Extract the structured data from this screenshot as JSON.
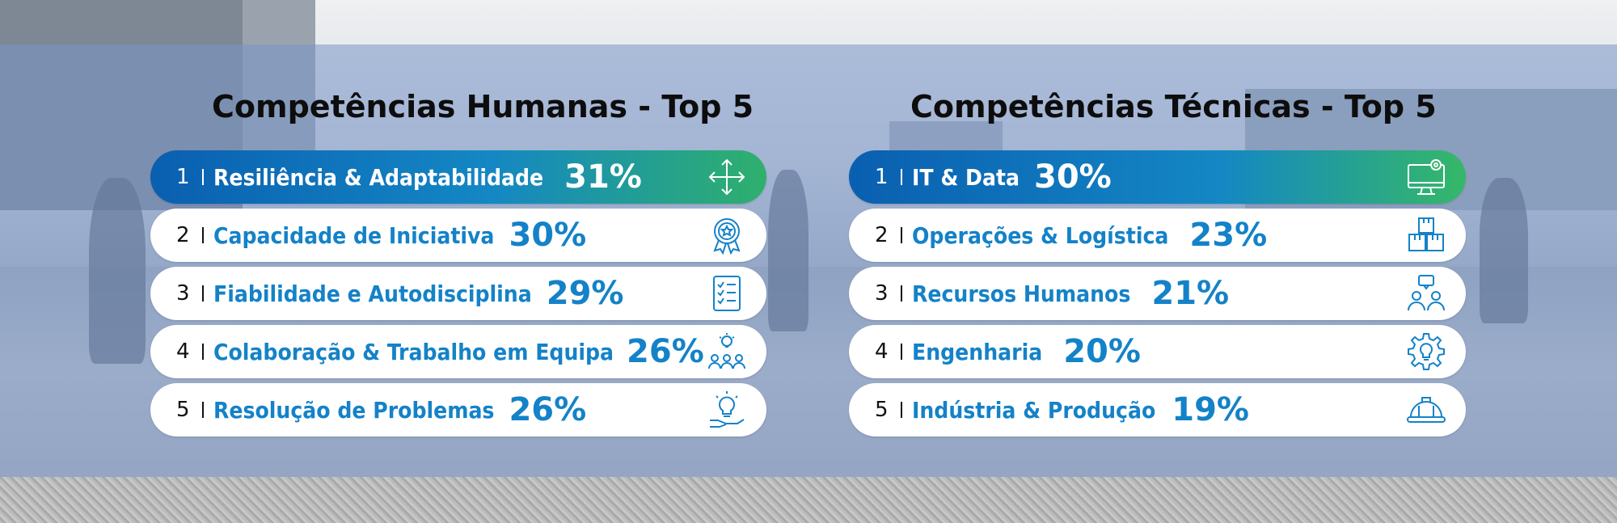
{
  "human": {
    "title": "Competências Humanas - Top 5",
    "items": [
      {
        "rank": "1",
        "label": "Resiliência & Adaptabilidade",
        "percent": "31%",
        "icon": "move-arrows-icon"
      },
      {
        "rank": "2",
        "label": "Capacidade de Iniciativa",
        "percent": "30%",
        "icon": "award-badge-icon"
      },
      {
        "rank": "3",
        "label": "Fiabilidade e Autodisciplina",
        "percent": "29%",
        "icon": "checklist-icon"
      },
      {
        "rank": "4",
        "label": "Colaboração & Trabalho em Equipa",
        "percent": "26%",
        "icon": "team-idea-icon"
      },
      {
        "rank": "5",
        "label": "Resolução de Problemas",
        "percent": "26%",
        "icon": "hand-lightbulb-icon"
      }
    ]
  },
  "technical": {
    "title": "Competências Técnicas - Top 5",
    "items": [
      {
        "rank": "1",
        "label": "IT & Data",
        "percent": "30%",
        "icon": "monitor-gear-icon"
      },
      {
        "rank": "2",
        "label": "Operações & Logística",
        "percent": "23%",
        "icon": "boxes-icon"
      },
      {
        "rank": "3",
        "label": "Recursos Humanos",
        "percent": "21%",
        "icon": "people-chat-icon"
      },
      {
        "rank": "4",
        "label": "Engenharia",
        "percent": "20%",
        "icon": "gear-bulb-icon"
      },
      {
        "rank": "5",
        "label": "Indústria & Produção",
        "percent": "19%",
        "icon": "hard-hat-icon"
      }
    ]
  },
  "colors": {
    "accent_blue": "#1482c8",
    "gradient_start": "#0a5fb0",
    "gradient_end": "#2fb06c",
    "overlay": "#7896c8"
  }
}
